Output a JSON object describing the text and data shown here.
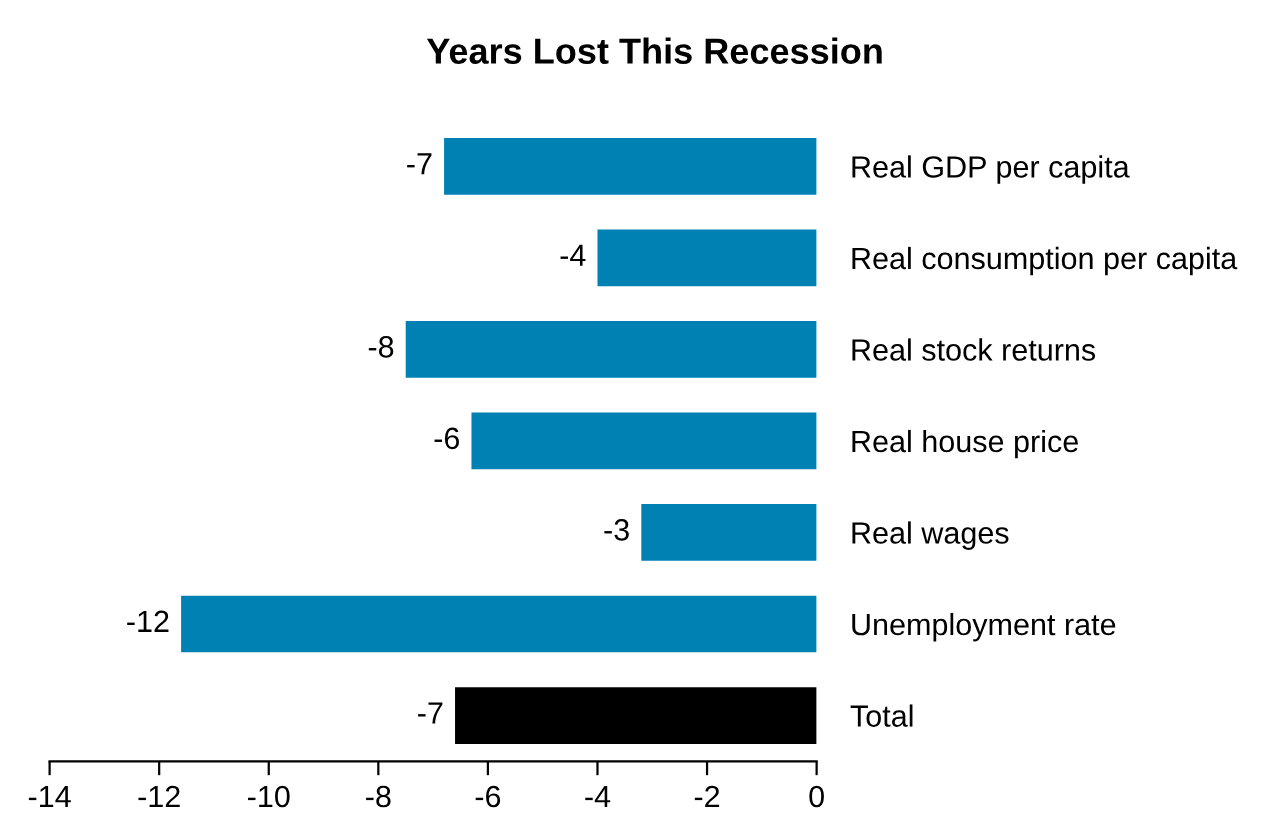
{
  "chart_data": {
    "type": "bar",
    "orientation": "horizontal",
    "title": "Years Lost This Recession",
    "categories": [
      "Real GDP per capita",
      "Real consumption per capita",
      "Real stock returns",
      "Real house price",
      "Real wages",
      "Unemployment rate",
      "Total"
    ],
    "values": [
      -6.8,
      -4.0,
      -7.5,
      -6.3,
      -3.2,
      -11.6,
      -6.6
    ],
    "value_labels": [
      "-7",
      "-4",
      "-8",
      "-6",
      "-3",
      "-12",
      "-7"
    ],
    "colors": [
      "#0081b4",
      "#0081b4",
      "#0081b4",
      "#0081b4",
      "#0081b4",
      "#0081b4",
      "#000000"
    ],
    "xlim": [
      -14,
      0
    ],
    "xticks": [
      -14,
      -12,
      -10,
      -8,
      -6,
      -4,
      -2,
      0
    ],
    "grid": false,
    "legend": false
  }
}
